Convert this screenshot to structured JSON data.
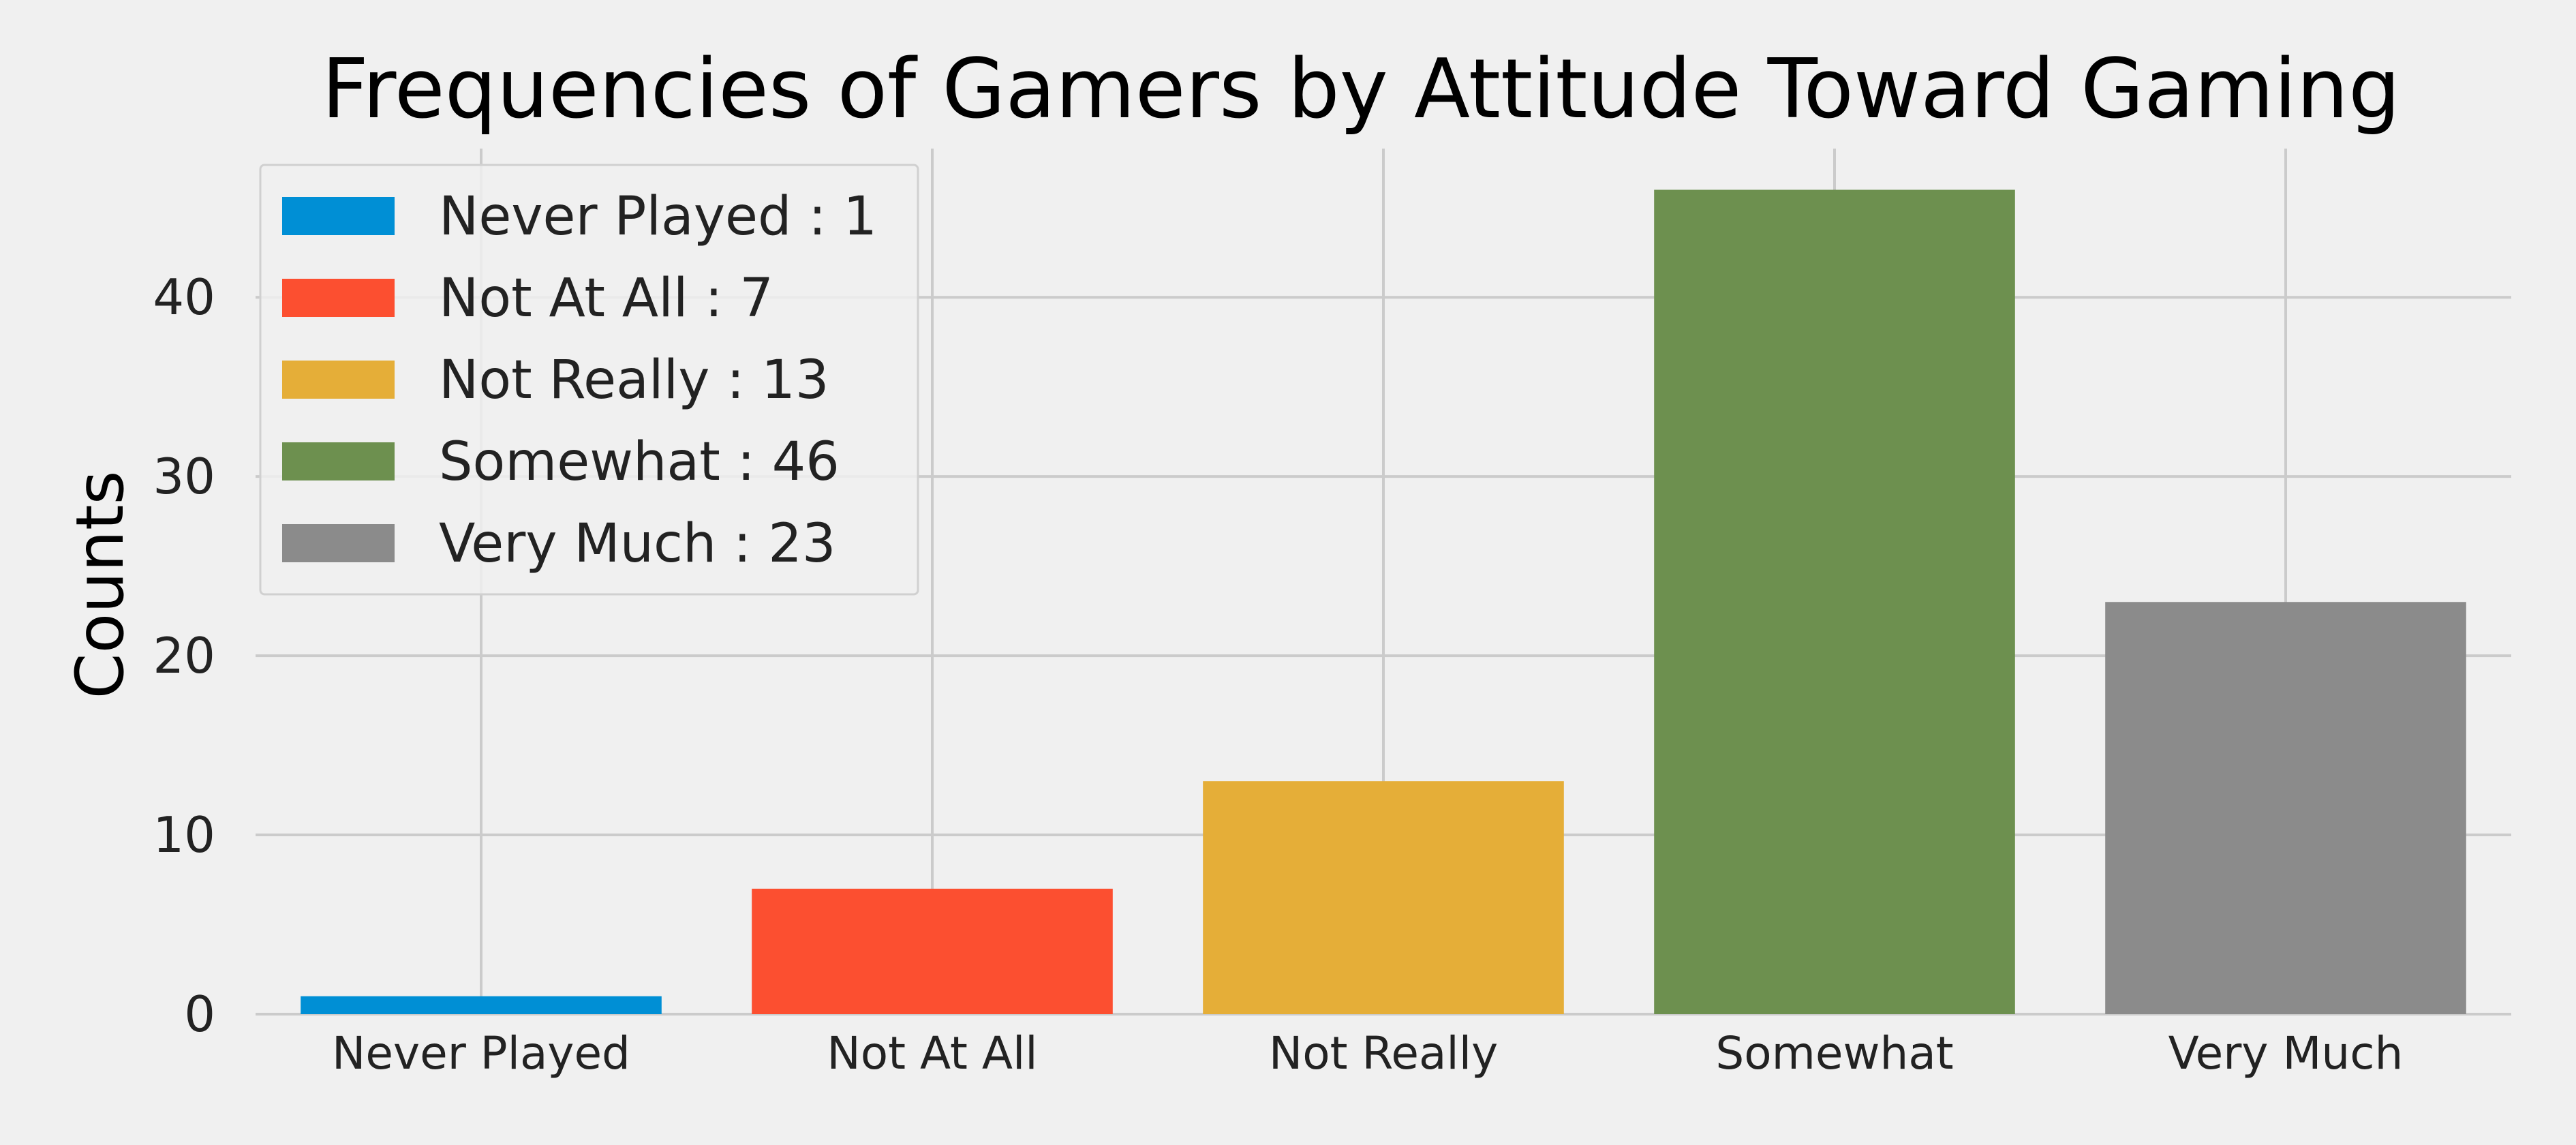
{
  "chart_data": {
    "type": "bar",
    "title": "Frequencies of Gamers by Attitude Toward Gaming",
    "xlabel": "",
    "ylabel": "Counts",
    "categories": [
      "Never Played",
      "Not At All",
      "Not Really",
      "Somewhat",
      "Very Much"
    ],
    "values": [
      1,
      7,
      13,
      46,
      23
    ],
    "colors": [
      "#008fd5",
      "#fc4f30",
      "#e5ae38",
      "#6d904f",
      "#8b8b8b"
    ],
    "ylim": [
      0,
      48.3
    ],
    "yticks": [
      0,
      10,
      20,
      30,
      40
    ],
    "grid": true,
    "legend_position": "top-left",
    "legend_entries": [
      "Never Played : 1",
      "Not At All : 7",
      "Not Really : 13",
      "Somewhat : 46",
      "Very Much : 23"
    ]
  }
}
